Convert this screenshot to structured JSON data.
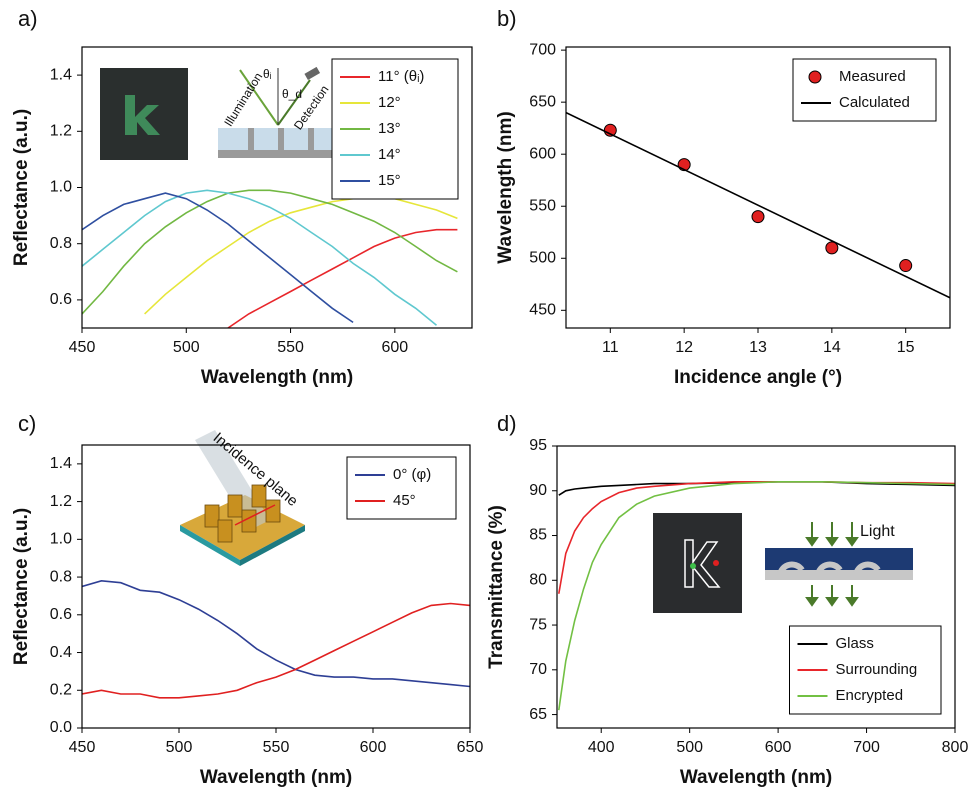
{
  "chart_data": [
    {
      "type": "line",
      "panel_label": "a)",
      "x_label": "Wavelength (nm)",
      "y_label": "Reflectance (a.u.)",
      "x": [
        450,
        460,
        470,
        480,
        490,
        500,
        510,
        520,
        530,
        540,
        550,
        560,
        570,
        580,
        590,
        600,
        610,
        620,
        630
      ],
      "series": [
        {
          "name": "11° (θᵢ)",
          "color": "#e8262b",
          "values": [
            null,
            null,
            null,
            null,
            null,
            null,
            null,
            0.5,
            0.55,
            0.59,
            0.63,
            0.67,
            0.71,
            0.75,
            0.79,
            0.82,
            0.84,
            0.85,
            0.85
          ]
        },
        {
          "name": "12°",
          "color": "#e6e63a",
          "values": [
            null,
            null,
            null,
            0.55,
            0.62,
            0.68,
            0.74,
            0.79,
            0.84,
            0.88,
            0.91,
            0.93,
            0.95,
            0.96,
            0.96,
            0.96,
            0.94,
            0.92,
            0.89
          ]
        },
        {
          "name": "13°",
          "color": "#72b843",
          "values": [
            0.55,
            0.63,
            0.72,
            0.8,
            0.86,
            0.91,
            0.95,
            0.98,
            0.99,
            0.99,
            0.98,
            0.96,
            0.94,
            0.91,
            0.88,
            0.84,
            0.79,
            0.74,
            0.7
          ]
        },
        {
          "name": "14°",
          "color": "#5fc8cf",
          "values": [
            0.72,
            0.78,
            0.84,
            0.9,
            0.95,
            0.98,
            0.99,
            0.98,
            0.96,
            0.93,
            0.89,
            0.84,
            0.79,
            0.73,
            0.68,
            0.62,
            0.57,
            0.51,
            null
          ]
        },
        {
          "name": "15°",
          "color": "#2f4fa0",
          "values": [
            0.85,
            0.9,
            0.94,
            0.96,
            0.98,
            0.96,
            0.92,
            0.87,
            0.81,
            0.75,
            0.69,
            0.63,
            0.57,
            0.52,
            null,
            null,
            null,
            null,
            null
          ]
        }
      ],
      "xlim": [
        450,
        637
      ],
      "xticks": [
        450,
        500,
        550,
        600
      ],
      "ylim": [
        0.5,
        1.5
      ],
      "yticks": [
        0.6,
        0.8,
        {
          "value": 1,
          "label": "1.0"
        },
        1.2,
        1.4
      ],
      "legend": "upper right",
      "annotations": [
        "Illumination",
        "Detection",
        "θᵢ",
        "θ_d"
      ]
    },
    {
      "type": "scatter",
      "panel_label": "b)",
      "x_label": "Incidence angle (°)",
      "y_label": "Wavelength (nm)",
      "series": [
        {
          "name": "Measured",
          "color": "#e02020",
          "marker": true,
          "x": [
            11,
            12,
            13,
            14,
            15
          ],
          "values": [
            623,
            590,
            540,
            510,
            493
          ]
        },
        {
          "name": "Calculated",
          "color": "#000000",
          "marker": false,
          "x": [
            10.4,
            15.6
          ],
          "values": [
            640,
            462
          ]
        }
      ],
      "xlim": [
        10.4,
        15.6
      ],
      "xticks": [
        11,
        12,
        13,
        14,
        15
      ],
      "ylim": [
        433,
        703
      ],
      "yticks": [
        450,
        500,
        550,
        600,
        650,
        700
      ],
      "legend": "upper right"
    },
    {
      "type": "line",
      "panel_label": "c)",
      "x_label": "Wavelength (nm)",
      "y_label": "Reflectance (a.u.)",
      "x": [
        450,
        460,
        470,
        480,
        490,
        500,
        510,
        520,
        530,
        540,
        550,
        560,
        570,
        580,
        590,
        600,
        610,
        620,
        630,
        640,
        650
      ],
      "series": [
        {
          "name": "0° (φ)",
          "color": "#2e3f95",
          "values": [
            0.75,
            0.78,
            0.77,
            0.73,
            0.72,
            0.68,
            0.63,
            0.57,
            0.5,
            0.42,
            0.36,
            0.31,
            0.28,
            0.27,
            0.27,
            0.26,
            0.26,
            0.25,
            0.24,
            0.23,
            0.22
          ]
        },
        {
          "name": "45°",
          "color": "#e02020",
          "values": [
            0.18,
            0.2,
            0.18,
            0.18,
            0.16,
            0.16,
            0.17,
            0.18,
            0.2,
            0.24,
            0.27,
            0.31,
            0.36,
            0.41,
            0.46,
            0.51,
            0.56,
            0.61,
            0.65,
            0.66,
            0.65
          ]
        }
      ],
      "xlim": [
        450,
        650
      ],
      "xticks": [
        450,
        500,
        550,
        600,
        650
      ],
      "ylim": [
        0,
        1.5
      ],
      "yticks": [
        {
          "value": 0,
          "label": "0.0"
        },
        0.2,
        0.4,
        0.6,
        0.8,
        {
          "value": 1,
          "label": "1.0"
        },
        1.2,
        1.4
      ],
      "legend": "upper right",
      "annotations": [
        "Incidence plane"
      ]
    },
    {
      "type": "line",
      "panel_label": "d)",
      "x_label": "Wavelength (nm)",
      "y_label": "Transmittance (%)",
      "x": [
        352,
        360,
        370,
        380,
        390,
        400,
        420,
        440,
        460,
        500,
        550,
        600,
        650,
        700,
        750,
        800
      ],
      "series": [
        {
          "name": "Glass",
          "color": "#000000",
          "values": [
            89.5,
            90,
            90.2,
            90.3,
            90.4,
            90.5,
            90.6,
            90.7,
            90.8,
            90.8,
            90.9,
            91,
            91,
            90.8,
            90.7,
            90.6
          ]
        },
        {
          "name": "Surrounding",
          "color": "#e8262b",
          "values": [
            78.5,
            83,
            85.5,
            87,
            88,
            88.8,
            89.8,
            90.3,
            90.5,
            90.8,
            91,
            91,
            91,
            90.9,
            90.9,
            90.8
          ]
        },
        {
          "name": "Encrypted",
          "color": "#72c043",
          "values": [
            65.5,
            71,
            75.5,
            79,
            82,
            84,
            87,
            88.5,
            89.4,
            90.3,
            90.8,
            91,
            91,
            90.9,
            90.8,
            90.7
          ]
        }
      ],
      "xlim": [
        350,
        800
      ],
      "xticks": [
        400,
        500,
        600,
        700,
        800
      ],
      "ylim": [
        63.5,
        95
      ],
      "yticks": [
        65,
        70,
        75,
        80,
        85,
        90,
        95
      ],
      "legend": "lower right",
      "annotations": [
        "Light"
      ]
    }
  ]
}
